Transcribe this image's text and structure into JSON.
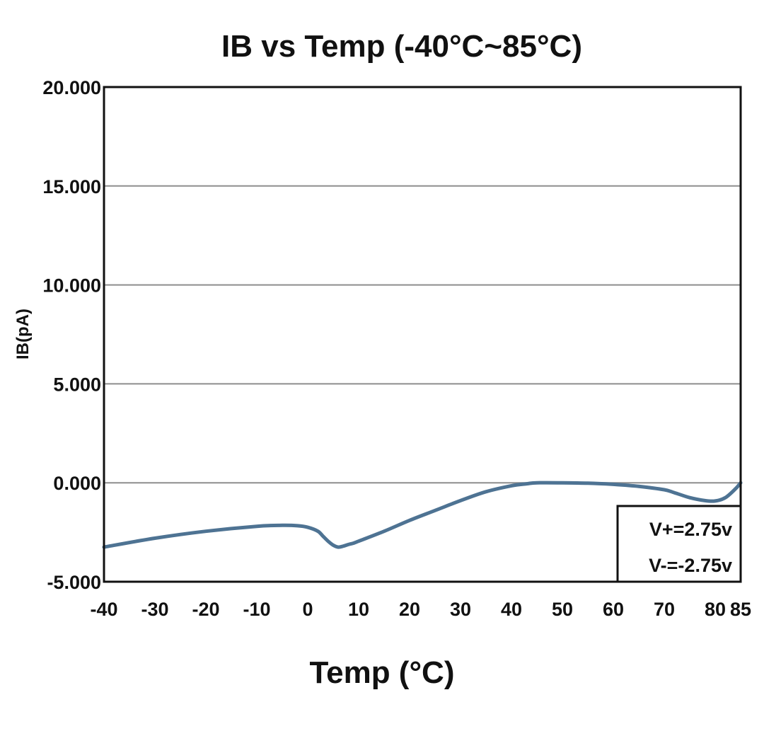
{
  "chart_data": {
    "type": "line",
    "title": "IB vs Temp (-40°C~85°C)",
    "xlabel": "Temp (°C)",
    "ylabel": "IB(pA)",
    "xlim": [
      -40,
      85
    ],
    "ylim": [
      -5,
      20
    ],
    "x_ticks": [
      -40,
      -30,
      -20,
      -10,
      0,
      10,
      20,
      30,
      40,
      50,
      60,
      70,
      80,
      85
    ],
    "x_tick_labels": [
      "-40",
      "-30",
      "-20",
      "-10",
      "0",
      "10",
      "20",
      "30",
      "40",
      "50",
      "60",
      "70",
      "80",
      "85"
    ],
    "y_ticks": [
      -5,
      0,
      5,
      10,
      15,
      20
    ],
    "y_tick_labels": [
      "-5.000",
      "0.000",
      "5.000",
      "10.000",
      "15.000",
      "20.000"
    ],
    "grid": true,
    "legend_position": "bottom-right",
    "annotations": [
      "V+=2.75v",
      "V-=-2.75v"
    ],
    "series": [
      {
        "name": "IB",
        "color": "#4e7393",
        "x": [
          -40,
          -30,
          -20,
          -10,
          -5,
          -2,
          0,
          2,
          3,
          4,
          5,
          6,
          7,
          8,
          9,
          10,
          15,
          20,
          25,
          30,
          35,
          40,
          43,
          45,
          50,
          55,
          60,
          65,
          70,
          72,
          75,
          78,
          80,
          82,
          84,
          85
        ],
        "y": [
          -3.25,
          -2.8,
          -2.45,
          -2.2,
          -2.15,
          -2.17,
          -2.25,
          -2.45,
          -2.7,
          -2.95,
          -3.15,
          -3.25,
          -3.2,
          -3.12,
          -3.05,
          -2.95,
          -2.45,
          -1.9,
          -1.4,
          -0.9,
          -0.45,
          -0.15,
          -0.05,
          0.0,
          0.0,
          -0.02,
          -0.08,
          -0.18,
          -0.35,
          -0.5,
          -0.75,
          -0.9,
          -0.92,
          -0.75,
          -0.3,
          0.0
        ]
      }
    ]
  }
}
